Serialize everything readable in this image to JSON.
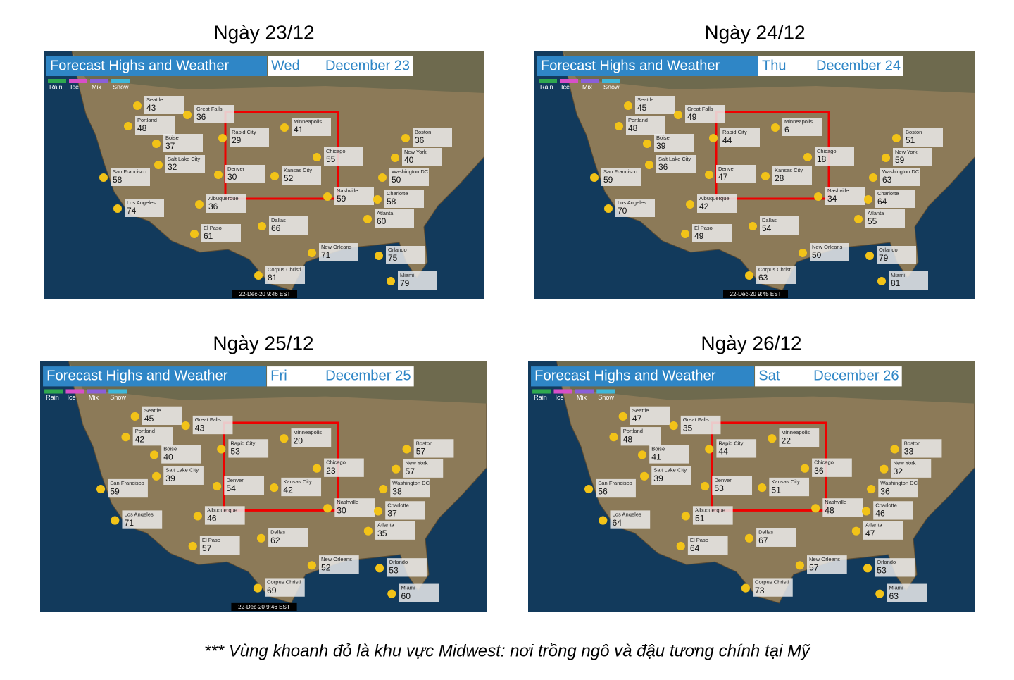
{
  "footnote": "*** Vùng khoanh đỏ là khu vực Midwest: nơi trồng ngô và đậu tương chính tại Mỹ",
  "header": "Forecast Highs and Weather",
  "legend": [
    "Rain",
    "Ice",
    "Mix",
    "Snow"
  ],
  "cities": [
    "Seattle",
    "Great Falls",
    "Portland",
    "Boise",
    "Salt Lake City",
    "San Francisco",
    "Rapid City",
    "Minneapolis",
    "Denver",
    "Kansas City",
    "Chicago",
    "Boston",
    "New York",
    "Washington DC",
    "Nashville",
    "Charlotte",
    "Los Angeles",
    "Albuquerque",
    "El Paso",
    "Dallas",
    "Atlanta",
    "New Orleans",
    "Orlando",
    "Corpus Christi",
    "Miami"
  ],
  "panels": [
    {
      "title": "Ngày 23/12",
      "day": "Wed",
      "date": "December 23",
      "timestamp": "22-Dec-20 9:46 EST",
      "temps": [
        43,
        36,
        48,
        37,
        32,
        58,
        29,
        41,
        30,
        52,
        55,
        36,
        40,
        50,
        59,
        58,
        74,
        36,
        61,
        66,
        60,
        71,
        75,
        81,
        79
      ]
    },
    {
      "title": "Ngày 24/12",
      "day": "Thu",
      "date": "December 24",
      "timestamp": "22-Dec-20 9:45 EST",
      "temps": [
        45,
        49,
        48,
        39,
        36,
        59,
        44,
        6,
        47,
        28,
        18,
        51,
        59,
        63,
        34,
        64,
        70,
        42,
        49,
        54,
        55,
        50,
        79,
        63,
        81
      ]
    },
    {
      "title": "Ngày 25/12",
      "day": "Fri",
      "date": "December 25",
      "timestamp": "22-Dec-20 9:46 EST",
      "temps": [
        45,
        43,
        42,
        40,
        39,
        59,
        53,
        20,
        54,
        42,
        23,
        57,
        57,
        38,
        30,
        37,
        71,
        46,
        57,
        62,
        35,
        52,
        53,
        69,
        60
      ]
    },
    {
      "title": "Ngày 26/12",
      "day": "Sat",
      "date": "December 26",
      "temps": [
        47,
        35,
        48,
        41,
        39,
        56,
        44,
        22,
        53,
        51,
        36,
        33,
        32,
        36,
        48,
        46,
        64,
        51,
        64,
        67,
        47,
        57,
        53,
        73,
        63
      ]
    }
  ]
}
